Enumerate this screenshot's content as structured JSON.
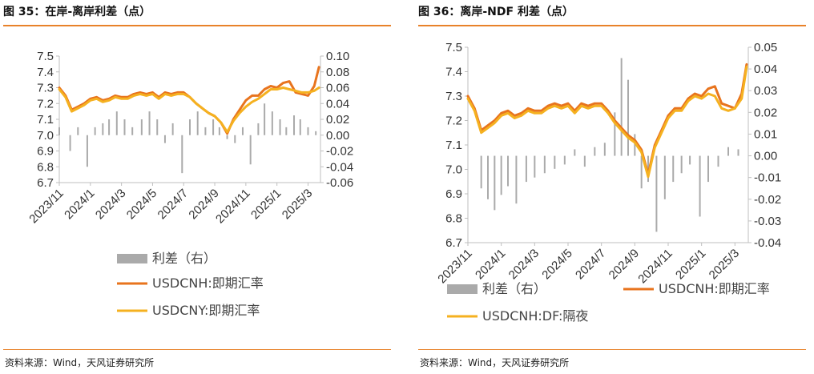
{
  "figures": [
    {
      "title": "图 35：在岸-离岸利差（点）",
      "source": "资料来源：Wind，天风证券研究所",
      "chart_data": {
        "type": "line",
        "x_range": [
          "2023-11",
          "2025-04"
        ],
        "xticks": [
          "2023/11",
          "2024/1",
          "2024/3",
          "2024/5",
          "2024/7",
          "2024/9",
          "2024/11",
          "2025/1",
          "2025/3"
        ],
        "y_left": {
          "min": 6.7,
          "max": 7.5,
          "step": 0.1,
          "ticks": [
            "7.5",
            "7.4",
            "7.3",
            "7.2",
            "7.1",
            "7.0",
            "6.9",
            "6.8",
            "6.7"
          ]
        },
        "y_right": {
          "min": -0.06,
          "max": 0.1,
          "step": 0.02,
          "ticks": [
            "0.10",
            "0.08",
            "0.06",
            "0.04",
            "0.02",
            "0.00",
            "-0.02",
            "-0.04",
            "-0.06"
          ]
        },
        "grid": false,
        "legend_position": "bottom",
        "series": [
          {
            "name": "利差（右）",
            "chart": "bar",
            "axis": "right",
            "color": "#aaaaaa",
            "x": [
              0,
              0.7,
              1.2,
              1.8,
              2.3,
              2.8,
              3.2,
              3.7,
              4.2,
              4.7,
              5.3,
              5.8,
              6.3,
              6.8,
              7.3,
              7.9,
              8.4,
              8.9,
              9.4,
              9.9,
              10.3,
              10.8,
              11.3,
              11.8,
              12.3,
              12.8,
              13.2,
              13.7,
              14.2,
              14.6,
              15.1,
              15.5,
              16.0,
              16.5
            ],
            "values": [
              0.01,
              -0.02,
              0.01,
              -0.04,
              0.01,
              0.015,
              0.02,
              0.03,
              0.02,
              0.01,
              0.02,
              0.03,
              0.02,
              -0.01,
              0.015,
              -0.048,
              0.02,
              0.03,
              0.01,
              0.02,
              0.01,
              -0.005,
              -0.01,
              0.01,
              -0.037,
              0.015,
              0.04,
              0.03,
              0.02,
              0.01,
              0.025,
              0.02,
              0.01,
              0.005
            ]
          },
          {
            "name": "USDCNH:即期汇率",
            "chart": "line",
            "axis": "left",
            "color": "#e8741e",
            "x": [
              0,
              0.4,
              0.8,
              1.2,
              1.6,
              2.0,
              2.4,
              2.8,
              3.2,
              3.6,
              4.0,
              4.4,
              4.8,
              5.2,
              5.6,
              6.0,
              6.4,
              6.8,
              7.2,
              7.6,
              8.0,
              8.4,
              8.8,
              9.2,
              9.6,
              10.0,
              10.4,
              10.8,
              11.2,
              11.6,
              12.0,
              12.4,
              12.8,
              13.2,
              13.6,
              14.0,
              14.4,
              14.8,
              15.2,
              15.6,
              16.0,
              16.4,
              16.7
            ],
            "values": [
              7.3,
              7.25,
              7.16,
              7.18,
              7.2,
              7.23,
              7.24,
              7.22,
              7.23,
              7.25,
              7.24,
              7.24,
              7.26,
              7.27,
              7.26,
              7.27,
              7.24,
              7.27,
              7.26,
              7.27,
              7.27,
              7.24,
              7.2,
              7.17,
              7.14,
              7.12,
              7.08,
              7.01,
              7.1,
              7.16,
              7.22,
              7.25,
              7.25,
              7.29,
              7.31,
              7.3,
              7.33,
              7.34,
              7.27,
              7.26,
              7.25,
              7.31,
              7.43
            ]
          },
          {
            "name": "USDCNY:即期汇率",
            "chart": "line",
            "axis": "left",
            "color": "#f5b120",
            "x": [
              0,
              0.4,
              0.8,
              1.2,
              1.6,
              2.0,
              2.4,
              2.8,
              3.2,
              3.6,
              4.0,
              4.4,
              4.8,
              5.2,
              5.6,
              6.0,
              6.4,
              6.8,
              7.2,
              7.6,
              8.0,
              8.4,
              8.8,
              9.2,
              9.6,
              10.0,
              10.4,
              10.8,
              11.2,
              11.6,
              12.0,
              12.4,
              12.8,
              13.2,
              13.6,
              14.0,
              14.4,
              14.8,
              15.2,
              15.6,
              16.0,
              16.4,
              16.7
            ],
            "values": [
              7.29,
              7.24,
              7.15,
              7.17,
              7.19,
              7.22,
              7.23,
              7.21,
              7.22,
              7.24,
              7.23,
              7.23,
              7.25,
              7.26,
              7.25,
              7.26,
              7.23,
              7.26,
              7.25,
              7.26,
              7.26,
              7.24,
              7.2,
              7.17,
              7.14,
              7.12,
              7.08,
              7.02,
              7.09,
              7.14,
              7.18,
              7.21,
              7.23,
              7.26,
              7.29,
              7.29,
              7.3,
              7.29,
              7.28,
              7.27,
              7.27,
              7.28,
              7.3
            ]
          }
        ]
      }
    },
    {
      "title": "图 36：离岸-NDF 利差（点）",
      "source": "资料来源：Wind，天风证券研究所",
      "chart_data": {
        "type": "line",
        "x_range": [
          "2023-11",
          "2025-04"
        ],
        "xticks": [
          "2023/11",
          "2024/1",
          "2024/3",
          "2024/5",
          "2024/7",
          "2024/9",
          "2024/11",
          "2025/1",
          "2025/3"
        ],
        "y_left": {
          "min": 6.7,
          "max": 7.5,
          "step": 0.1,
          "ticks": [
            "7.5",
            "7.4",
            "7.3",
            "7.2",
            "7.1",
            "7.0",
            "6.9",
            "6.8",
            "6.7"
          ]
        },
        "y_right": {
          "min": -0.04,
          "max": 0.05,
          "step": 0.01,
          "ticks": [
            "0.05",
            "0.04",
            "0.03",
            "0.02",
            "0.01",
            "0.00",
            "-0.01",
            "-0.02",
            "-0.03",
            "-0.04"
          ]
        },
        "grid": false,
        "legend_position": "bottom",
        "series": [
          {
            "name": "利差（右）",
            "chart": "bar",
            "axis": "right",
            "color": "#aaaaaa",
            "x": [
              0.8,
              1.2,
              1.6,
              2.0,
              2.4,
              2.9,
              3.5,
              4.0,
              4.6,
              5.2,
              5.8,
              6.4,
              7.0,
              7.6,
              8.2,
              8.8,
              9.2,
              9.6,
              10.0,
              10.4,
              10.8,
              11.3,
              11.8,
              12.3,
              12.8,
              13.3,
              13.9,
              14.4,
              15.0,
              15.6,
              16.2
            ],
            "values": [
              -0.015,
              -0.02,
              -0.025,
              -0.018,
              -0.014,
              -0.022,
              -0.012,
              -0.01,
              -0.008,
              -0.006,
              -0.004,
              0.003,
              -0.005,
              0.004,
              0.006,
              0.02,
              0.045,
              0.035,
              0.01,
              -0.015,
              -0.012,
              -0.035,
              -0.02,
              -0.012,
              -0.008,
              -0.004,
              -0.028,
              -0.012,
              -0.005,
              0.004,
              0.003
            ]
          },
          {
            "name": "USDCNH:即期汇率",
            "chart": "line",
            "axis": "left",
            "color": "#e8741e",
            "x": [
              0,
              0.4,
              0.8,
              1.2,
              1.6,
              2.0,
              2.4,
              2.8,
              3.2,
              3.6,
              4.0,
              4.4,
              4.8,
              5.2,
              5.6,
              6.0,
              6.4,
              6.8,
              7.2,
              7.6,
              8.0,
              8.4,
              8.8,
              9.2,
              9.6,
              10.0,
              10.4,
              10.8,
              11.2,
              11.6,
              12.0,
              12.4,
              12.8,
              13.2,
              13.6,
              14.0,
              14.4,
              14.8,
              15.2,
              15.6,
              16.0,
              16.4,
              16.7
            ],
            "values": [
              7.3,
              7.25,
              7.16,
              7.18,
              7.2,
              7.23,
              7.24,
              7.22,
              7.23,
              7.25,
              7.24,
              7.24,
              7.26,
              7.27,
              7.26,
              7.27,
              7.24,
              7.27,
              7.26,
              7.27,
              7.27,
              7.24,
              7.2,
              7.17,
              7.14,
              7.12,
              7.08,
              6.98,
              7.1,
              7.16,
              7.22,
              7.25,
              7.25,
              7.29,
              7.31,
              7.3,
              7.33,
              7.34,
              7.27,
              7.26,
              7.25,
              7.31,
              7.43
            ]
          },
          {
            "name": "USDCNH:DF:隔夜",
            "chart": "line",
            "axis": "left",
            "color": "#f5b120",
            "x": [
              0,
              0.4,
              0.8,
              1.2,
              1.6,
              2.0,
              2.4,
              2.8,
              3.2,
              3.6,
              4.0,
              4.4,
              4.8,
              5.2,
              5.6,
              6.0,
              6.4,
              6.8,
              7.2,
              7.6,
              8.0,
              8.4,
              8.8,
              9.2,
              9.6,
              10.0,
              10.4,
              10.8,
              11.2,
              11.6,
              12.0,
              12.4,
              12.8,
              13.2,
              13.6,
              14.0,
              14.4,
              14.8,
              15.2,
              15.6,
              16.0,
              16.4,
              16.7
            ],
            "values": [
              7.29,
              7.24,
              7.15,
              7.17,
              7.19,
              7.22,
              7.23,
              7.21,
              7.22,
              7.24,
              7.23,
              7.23,
              7.25,
              7.26,
              7.25,
              7.26,
              7.23,
              7.26,
              7.25,
              7.26,
              7.26,
              7.23,
              7.19,
              7.16,
              7.13,
              7.11,
              7.07,
              6.97,
              7.09,
              7.15,
              7.21,
              7.24,
              7.24,
              7.28,
              7.3,
              7.29,
              7.31,
              7.3,
              7.25,
              7.24,
              7.25,
              7.29,
              7.42
            ]
          }
        ]
      }
    }
  ]
}
